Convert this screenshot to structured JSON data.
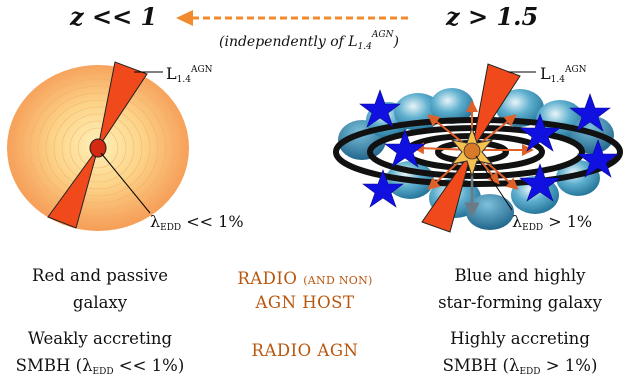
{
  "header": {
    "left_z": "z << 1",
    "right_z": "z > 1.5",
    "arrow_note_prefix": "(independently of L",
    "arrow_note_sub": "1.4",
    "arrow_note_sup": "AGN",
    "arrow_note_suffix": ")"
  },
  "left_panel": {
    "lum_label": "L",
    "lum_sub": "1.4",
    "lum_sup": "AGN",
    "edd_label": "λ",
    "edd_sub": "EDD",
    "edd_value": " << 1%"
  },
  "right_panel": {
    "lum_label": "L",
    "lum_sub": "1.4",
    "lum_sup": "AGN",
    "edd_label": "λ",
    "edd_sub": "EDD",
    "edd_value": " > 1%"
  },
  "captions": {
    "left_row1_line1": "Red and passive",
    "left_row1_line2": "galaxy",
    "mid_row1_a": "RADIO ",
    "mid_row1_b": "(AND NON)",
    "mid_row1_line2": "AGN HOST",
    "right_row1_line1": "Blue and highly",
    "right_row1_line2": "star-forming galaxy",
    "left_row2_line1": "Weakly accreting",
    "left_row2_pre": "SMBH (λ",
    "left_row2_sub": "EDD",
    "left_row2_post": " << 1%)",
    "mid_row2": "RADIO AGN",
    "right_row2_line1": "Highly accreting",
    "right_row2_pre": "SMBH (λ",
    "right_row2_sub": "EDD",
    "right_row2_post": " > 1%)"
  },
  "colors": {
    "arrow": "#f28a2e",
    "galaxy_outer": "#f5a35a",
    "galaxy_inner": "#fde8a8",
    "jet": "#f04a1c",
    "star": "#1010e0",
    "cloud": "#2a8cae",
    "accent_text": "#b8560e"
  }
}
